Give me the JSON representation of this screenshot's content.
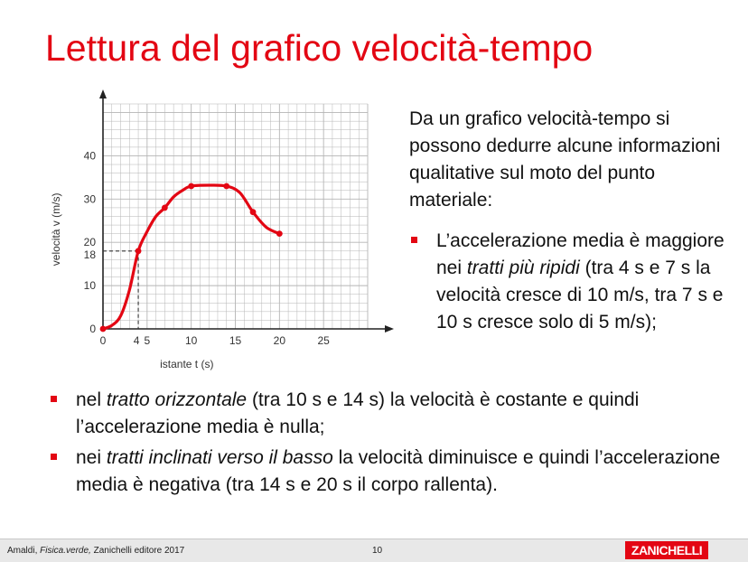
{
  "title": "Lettura del grafico velocità-tempo",
  "intro": "Da un grafico velocità-tempo si possono dedurre alcune informazioni qualitative sul moto del punto materiale:",
  "bullets_right": [
    {
      "parts": [
        {
          "text": "L’accelerazione media è maggiore nei ",
          "italic": false
        },
        {
          "text": "tratti più ripidi",
          "italic": true
        },
        {
          "text": " (tra 4 s e 7 s la velocità cresce di 10 m/s, tra 7 s e 10 s cresce solo di 5 m/s);",
          "italic": false
        }
      ]
    }
  ],
  "bullets_bottom": [
    {
      "parts": [
        {
          "text": "nel ",
          "italic": false
        },
        {
          "text": "tratto orizzontale",
          "italic": true
        },
        {
          "text": " (tra 10 s e 14 s) la velocità è costante e quindi l’accelerazione media è nulla;",
          "italic": false
        }
      ]
    },
    {
      "parts": [
        {
          "text": "nei ",
          "italic": false
        },
        {
          "text": "tratti inclinati verso il basso",
          "italic": true
        },
        {
          "text": " la velocità diminuisce e quindi l’accelerazione media è negativa (tra 14 s e 20 s il corpo rallenta).",
          "italic": false
        }
      ]
    }
  ],
  "chart_data": {
    "type": "line",
    "xlabel": "istante t (s)",
    "ylabel": "velocità v (m/s)",
    "xlim": [
      0,
      30
    ],
    "ylim": [
      0,
      52
    ],
    "x_ticks": [
      "0",
      "5",
      "10",
      "15",
      "20",
      "25"
    ],
    "y_ticks": [
      "0",
      "10",
      "20",
      "30",
      "40"
    ],
    "highlight": {
      "x": 4,
      "y": 18,
      "x_label": "4",
      "y_label": "18"
    },
    "points": [
      {
        "x": 0,
        "y": 0
      },
      {
        "x": 4,
        "y": 18
      },
      {
        "x": 7,
        "y": 28
      },
      {
        "x": 10,
        "y": 33
      },
      {
        "x": 14,
        "y": 33
      },
      {
        "x": 17,
        "y": 27
      },
      {
        "x": 20,
        "y": 22
      }
    ],
    "curve": [
      [
        0,
        0
      ],
      [
        1,
        0.8
      ],
      [
        2,
        3
      ],
      [
        3,
        9
      ],
      [
        4,
        18
      ],
      [
        5,
        22.5
      ],
      [
        6,
        26
      ],
      [
        7,
        28
      ],
      [
        8,
        30.5
      ],
      [
        9,
        32
      ],
      [
        10,
        33
      ],
      [
        12,
        33.2
      ],
      [
        14,
        33
      ],
      [
        15.5,
        31.5
      ],
      [
        17,
        27
      ],
      [
        18.5,
        23.5
      ],
      [
        20,
        22
      ]
    ],
    "colors": {
      "line": "#e30613",
      "grid": "#b5b5b5",
      "axis": "#222222",
      "highlight_label": "#2f8fce"
    }
  },
  "footer": {
    "credit_prefix": "Amaldi, ",
    "credit_italic": "Fisica.verde,",
    "credit_suffix": "  Zanichelli editore 2017",
    "page": "10",
    "logo": "ZANICHELLI"
  }
}
